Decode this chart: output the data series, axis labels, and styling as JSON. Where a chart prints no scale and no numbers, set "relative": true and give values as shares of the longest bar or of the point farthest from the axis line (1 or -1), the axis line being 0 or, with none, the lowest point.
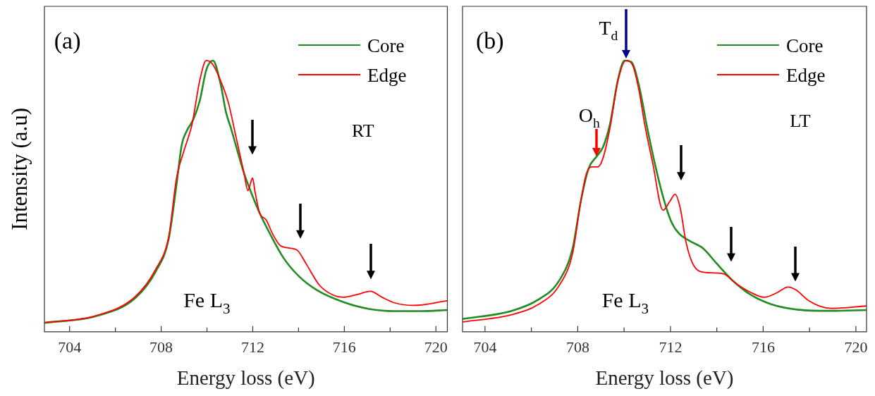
{
  "chart_data": [
    {
      "type": "line",
      "xlabel": "Energy loss (eV)",
      "ylabel": "Intensity (a.u)",
      "relative": true,
      "xlim": [
        702.9,
        720.5
      ],
      "xticks": [
        704,
        {
          "value": 706,
          "label": null
        },
        708,
        {
          "value": 710,
          "label": null
        },
        712,
        {
          "value": 714,
          "label": null
        },
        716,
        {
          "value": 718,
          "label": null
        },
        720
      ],
      "tick_labels": "x",
      "legend": "top right",
      "annotations": [
        "(a)",
        "RT",
        "Fe L$_{3}$"
      ],
      "series": [
        {
          "name": "Core",
          "color": "#228b22",
          "x": [
            702.9,
            705.14,
            706.85,
            707.76,
            708.33,
            708.67,
            708.9,
            709.12,
            709.41,
            709.69,
            709.97,
            710.26,
            710.6,
            710.83,
            711.05,
            711.34,
            711.62,
            711.96,
            712.3,
            712.76,
            713.33,
            714.01,
            714.81,
            715.94,
            717.08,
            718.22,
            719.35,
            720.49
          ],
          "values": [
            0.033,
            0.057,
            0.123,
            0.222,
            0.343,
            0.543,
            0.69,
            0.741,
            0.784,
            0.853,
            0.966,
            1,
            0.912,
            0.81,
            0.75,
            0.664,
            0.584,
            0.507,
            0.438,
            0.36,
            0.274,
            0.205,
            0.153,
            0.11,
            0.084,
            0.076,
            0.076,
            0.08
          ]
        },
        {
          "name": "Edge",
          "color": "#ff0000",
          "x": [
            702.9,
            705.14,
            706.85,
            707.76,
            708.33,
            708.67,
            709.01,
            709.35,
            709.69,
            709.97,
            710.26,
            710.66,
            710.94,
            711.28,
            711.62,
            711.79,
            711.91,
            711.99,
            712.1,
            712.3,
            712.59,
            712.87,
            713.21,
            713.56,
            713.95,
            714.35,
            714.92,
            715.49,
            715.94,
            716.51,
            717.14,
            717.65,
            718.22,
            719.01,
            720.49
          ],
          "values": [
            0.033,
            0.059,
            0.128,
            0.23,
            0.351,
            0.566,
            0.671,
            0.766,
            0.929,
            1,
            0.985,
            0.912,
            0.843,
            0.714,
            0.584,
            0.52,
            0.55,
            0.567,
            0.516,
            0.438,
            0.412,
            0.36,
            0.317,
            0.309,
            0.3,
            0.248,
            0.171,
            0.136,
            0.127,
            0.136,
            0.149,
            0.127,
            0.106,
            0.097,
            0.114
          ]
        }
      ]
    },
    {
      "type": "line",
      "xlabel": "Energy loss (eV)",
      "relative": true,
      "xlim": [
        703.03,
        720.46
      ],
      "xticks": [
        704,
        {
          "value": 706,
          "label": null
        },
        708,
        {
          "value": 710,
          "label": null
        },
        712,
        {
          "value": 714,
          "label": null
        },
        716,
        {
          "value": 718,
          "label": null
        },
        720
      ],
      "tick_labels": "x",
      "legend": "top right",
      "annotations": [
        "(b)",
        {
          "text": "T$_{d}$",
          "x": 710.1,
          "y": 1
        },
        {
          "text": "O$_{h}$",
          "x": 708.8,
          "y": 0.64
        },
        "LT",
        "Fe L$_{3}$"
      ],
      "series": [
        {
          "name": "Core",
          "color": "#228b22",
          "x": [
            703.03,
            705.15,
            706.29,
            707.21,
            707.78,
            708.13,
            708.47,
            708.82,
            709.1,
            709.39,
            709.73,
            710.02,
            710.31,
            710.65,
            711,
            711.34,
            711.68,
            712.03,
            712.37,
            712.83,
            713.4,
            713.98,
            714.67,
            715.47,
            716.39,
            717.53,
            718.91,
            720.46
          ],
          "values": [
            0.047,
            0.077,
            0.118,
            0.19,
            0.308,
            0.48,
            0.602,
            0.647,
            0.683,
            0.765,
            0.928,
            1,
            0.995,
            0.905,
            0.751,
            0.615,
            0.498,
            0.407,
            0.362,
            0.335,
            0.308,
            0.253,
            0.19,
            0.136,
            0.1,
            0.081,
            0.077,
            0.08
          ]
        },
        {
          "name": "Edge",
          "color": "#ff0000",
          "x": [
            703.03,
            705.15,
            706.29,
            707.21,
            707.78,
            708.13,
            708.36,
            708.59,
            708.87,
            709.1,
            709.39,
            709.73,
            710.08,
            710.37,
            710.65,
            710.88,
            711.23,
            711.68,
            711.97,
            712.2,
            712.43,
            712.66,
            712.95,
            713.29,
            713.86,
            714.32,
            714.78,
            715.47,
            716.04,
            716.62,
            717.07,
            717.42,
            717.99,
            718.91,
            720.46
          ],
          "values": [
            0.036,
            0.063,
            0.1,
            0.172,
            0.29,
            0.48,
            0.579,
            0.608,
            0.608,
            0.643,
            0.751,
            0.923,
            1,
            0.982,
            0.887,
            0.769,
            0.624,
            0.448,
            0.48,
            0.507,
            0.453,
            0.335,
            0.253,
            0.222,
            0.217,
            0.213,
            0.181,
            0.145,
            0.127,
            0.145,
            0.165,
            0.154,
            0.113,
            0.086,
            0.095
          ]
        }
      ]
    }
  ]
}
